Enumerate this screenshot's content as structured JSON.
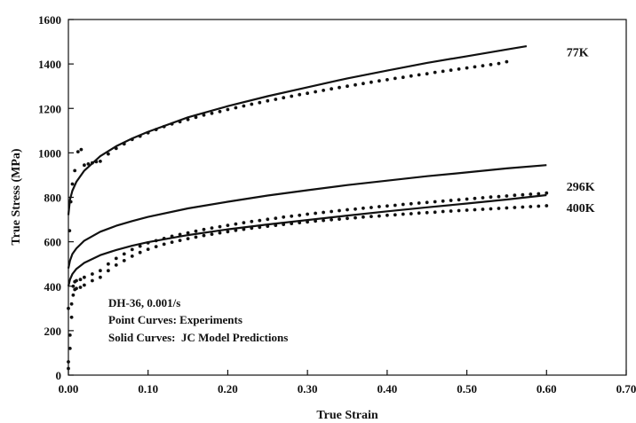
{
  "chart_data": {
    "type": "scatter",
    "title": "",
    "xlabel": "True Strain",
    "ylabel": "True Stress (MPa)",
    "xlim": [
      0,
      0.7
    ],
    "ylim": [
      0,
      1600
    ],
    "x_ticks": [
      "0.00",
      "0.10",
      "0.20",
      "0.30",
      "0.40",
      "0.50",
      "0.60",
      "0.70"
    ],
    "y_ticks": [
      "0",
      "200",
      "400",
      "600",
      "800",
      "1000",
      "1200",
      "1400",
      "1600"
    ],
    "grid": false,
    "annotations": [
      "DH-36, 0.001/s",
      "Point Curves: Experiments",
      "Solid Curves:  JC Model Predictions"
    ],
    "curve_labels": [
      {
        "text": "77K",
        "x": 0.625,
        "y": 1455
      },
      {
        "text": "296K",
        "x": 0.625,
        "y": 850
      },
      {
        "text": "400K",
        "x": 0.625,
        "y": 755
      }
    ],
    "series": [
      {
        "kind": "model",
        "label": "77K",
        "x": [
          0.0,
          0.002,
          0.005,
          0.01,
          0.02,
          0.04,
          0.06,
          0.08,
          0.1,
          0.15,
          0.2,
          0.25,
          0.3,
          0.35,
          0.4,
          0.45,
          0.5,
          0.55,
          0.575
        ],
        "y": [
          720,
          790,
          830,
          870,
          920,
          985,
          1030,
          1065,
          1095,
          1160,
          1210,
          1255,
          1295,
          1335,
          1370,
          1405,
          1435,
          1465,
          1480
        ]
      },
      {
        "kind": "model",
        "label": "296K",
        "x": [
          0.0,
          0.002,
          0.005,
          0.01,
          0.02,
          0.04,
          0.06,
          0.08,
          0.1,
          0.15,
          0.2,
          0.25,
          0.3,
          0.35,
          0.4,
          0.45,
          0.5,
          0.55,
          0.6
        ],
        "y": [
          480,
          515,
          545,
          570,
          605,
          645,
          672,
          693,
          712,
          750,
          780,
          808,
          832,
          855,
          875,
          895,
          912,
          930,
          945
        ]
      },
      {
        "kind": "model",
        "label": "400K",
        "x": [
          0.0,
          0.002,
          0.005,
          0.01,
          0.02,
          0.04,
          0.06,
          0.08,
          0.1,
          0.15,
          0.2,
          0.25,
          0.3,
          0.35,
          0.4,
          0.45,
          0.5,
          0.55,
          0.6
        ],
        "y": [
          400,
          430,
          455,
          478,
          505,
          540,
          563,
          582,
          598,
          630,
          656,
          678,
          698,
          718,
          737,
          755,
          772,
          790,
          810
        ]
      },
      {
        "kind": "experiment",
        "label": "77K",
        "x": [
          0.0,
          0.0015,
          0.003,
          0.005,
          0.008,
          0.012,
          0.016,
          0.02,
          0.025,
          0.03,
          0.035,
          0.04,
          0.05,
          0.06,
          0.07,
          0.08,
          0.09,
          0.1,
          0.11,
          0.12,
          0.13,
          0.14,
          0.15,
          0.16,
          0.17,
          0.18,
          0.19,
          0.2,
          0.21,
          0.22,
          0.23,
          0.24,
          0.25,
          0.26,
          0.27,
          0.28,
          0.29,
          0.3,
          0.31,
          0.32,
          0.33,
          0.34,
          0.35,
          0.36,
          0.37,
          0.38,
          0.39,
          0.4,
          0.41,
          0.42,
          0.43,
          0.44,
          0.45,
          0.46,
          0.47,
          0.48,
          0.49,
          0.5,
          0.51,
          0.52,
          0.53,
          0.54,
          0.55
        ],
        "y": [
          300,
          650,
          780,
          860,
          920,
          1005,
          1015,
          945,
          950,
          955,
          960,
          962,
          995,
          1020,
          1040,
          1060,
          1075,
          1090,
          1105,
          1118,
          1130,
          1140,
          1150,
          1160,
          1170,
          1178,
          1186,
          1195,
          1203,
          1211,
          1219,
          1226,
          1234,
          1241,
          1248,
          1255,
          1262,
          1268,
          1275,
          1281,
          1288,
          1294,
          1300,
          1306,
          1312,
          1318,
          1324,
          1329,
          1335,
          1340,
          1346,
          1351,
          1356,
          1362,
          1367,
          1372,
          1377,
          1382,
          1387,
          1392,
          1397,
          1402,
          1410
        ]
      },
      {
        "kind": "experiment",
        "label": "296K",
        "x": [
          0.0,
          0.002,
          0.004,
          0.006,
          0.008,
          0.01,
          0.015,
          0.02,
          0.03,
          0.04,
          0.05,
          0.06,
          0.07,
          0.08,
          0.09,
          0.1,
          0.11,
          0.12,
          0.13,
          0.14,
          0.15,
          0.16,
          0.17,
          0.18,
          0.19,
          0.2,
          0.21,
          0.22,
          0.23,
          0.24,
          0.25,
          0.26,
          0.27,
          0.28,
          0.29,
          0.3,
          0.31,
          0.32,
          0.33,
          0.34,
          0.35,
          0.36,
          0.37,
          0.38,
          0.39,
          0.4,
          0.41,
          0.42,
          0.43,
          0.44,
          0.45,
          0.46,
          0.47,
          0.48,
          0.49,
          0.5,
          0.51,
          0.52,
          0.53,
          0.54,
          0.55,
          0.56,
          0.57,
          0.58,
          0.59,
          0.6
        ],
        "y": [
          60,
          180,
          320,
          400,
          420,
          425,
          430,
          440,
          455,
          470,
          500,
          525,
          545,
          565,
          580,
          595,
          605,
          615,
          625,
          633,
          640,
          648,
          655,
          662,
          668,
          674,
          680,
          686,
          691,
          696,
          701,
          706,
          711,
          715,
          719,
          724,
          728,
          732,
          736,
          740,
          744,
          747,
          751,
          754,
          758,
          761,
          764,
          768,
          771,
          774,
          777,
          780,
          783,
          786,
          789,
          792,
          795,
          798,
          801,
          803,
          806,
          809,
          811,
          814,
          816,
          819
        ]
      },
      {
        "kind": "experiment",
        "label": "400K",
        "x": [
          0.0,
          0.002,
          0.004,
          0.006,
          0.008,
          0.01,
          0.015,
          0.02,
          0.03,
          0.04,
          0.05,
          0.06,
          0.07,
          0.08,
          0.09,
          0.1,
          0.11,
          0.12,
          0.13,
          0.14,
          0.15,
          0.16,
          0.17,
          0.18,
          0.19,
          0.2,
          0.21,
          0.22,
          0.23,
          0.24,
          0.25,
          0.26,
          0.27,
          0.28,
          0.29,
          0.3,
          0.31,
          0.32,
          0.33,
          0.34,
          0.35,
          0.36,
          0.37,
          0.38,
          0.39,
          0.4,
          0.41,
          0.42,
          0.43,
          0.44,
          0.45,
          0.46,
          0.47,
          0.48,
          0.49,
          0.5,
          0.51,
          0.52,
          0.53,
          0.54,
          0.55,
          0.56,
          0.57,
          0.58,
          0.59,
          0.6
        ],
        "y": [
          30,
          120,
          260,
          360,
          385,
          390,
          395,
          405,
          425,
          440,
          470,
          495,
          515,
          535,
          552,
          566,
          578,
          589,
          598,
          606,
          614,
          621,
          628,
          634,
          640,
          645,
          651,
          656,
          661,
          665,
          670,
          674,
          678,
          682,
          686,
          689,
          693,
          696,
          699,
          702,
          705,
          708,
          711,
          714,
          716,
          719,
          721,
          724,
          726,
          729,
          731,
          733,
          736,
          738,
          740,
          742,
          744,
          746,
          748,
          750,
          752,
          754,
          756,
          758,
          760,
          762
        ]
      }
    ]
  }
}
